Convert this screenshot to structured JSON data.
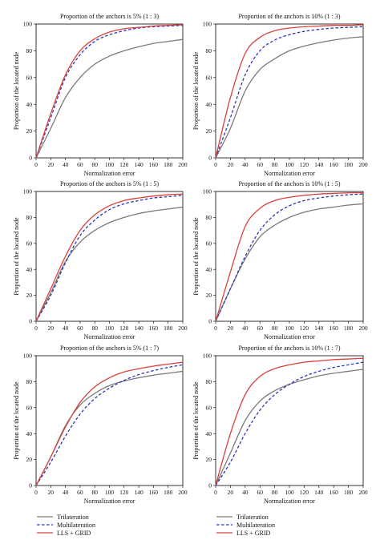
{
  "chart_data": [
    {
      "type": "line",
      "title": "Proportion of the anchors is 5% (1 : 3)",
      "xlabel": "Normalization error",
      "ylabel": "Proportion of the located node",
      "xlim": [
        0,
        200
      ],
      "ylim": [
        0,
        100
      ],
      "x": [
        0,
        20,
        40,
        60,
        80,
        100,
        120,
        140,
        160,
        180,
        200
      ],
      "xticks": [
        "0",
        "20",
        "40",
        "60",
        "80",
        "100",
        "120",
        "140",
        "160",
        "180",
        "200"
      ],
      "yticks": [
        "0",
        "20",
        "40",
        "60",
        "80",
        "100"
      ],
      "series": [
        {
          "name": "Trilateration",
          "values": [
            0,
            22,
            45,
            60,
            70,
            76,
            80,
            83,
            85.5,
            87,
            88.5
          ]
        },
        {
          "name": "Multilateration",
          "values": [
            0,
            30,
            60,
            77,
            87,
            92,
            95,
            97,
            98,
            98.5,
            99
          ]
        },
        {
          "name": "LLS + GRID",
          "values": [
            0,
            33,
            62,
            80,
            89,
            94,
            96.5,
            97.5,
            98.5,
            99,
            99.5
          ]
        }
      ]
    },
    {
      "type": "line",
      "title": "Proportion of the anchors is 10% (1 : 3)",
      "xlabel": "Normalization error",
      "ylabel": "Proportion of the located node",
      "xlim": [
        0,
        200
      ],
      "ylim": [
        0,
        100
      ],
      "x": [
        0,
        20,
        40,
        60,
        80,
        100,
        120,
        140,
        160,
        180,
        200
      ],
      "xticks": [
        "0",
        "20",
        "40",
        "60",
        "80",
        "100",
        "120",
        "140",
        "160",
        "180",
        "200"
      ],
      "yticks": [
        "0",
        "20",
        "40",
        "60",
        "80",
        "100"
      ],
      "series": [
        {
          "name": "Trilateration",
          "values": [
            0,
            22,
            50,
            66,
            74,
            80,
            83.5,
            86,
            88,
            89.5,
            90.5
          ]
        },
        {
          "name": "Multilateration",
          "values": [
            0,
            30,
            62,
            80,
            88,
            92,
            94.5,
            96,
            97,
            97.5,
            98
          ]
        },
        {
          "name": "LLS + GRID",
          "values": [
            0,
            45,
            78,
            90,
            95,
            97,
            98,
            98.5,
            99,
            99,
            99.5
          ]
        }
      ]
    },
    {
      "type": "line",
      "title": "Proportion of the anchors is 5% (1 : 5)",
      "xlabel": "Normalization error",
      "ylabel": "Proportion of the located node",
      "xlim": [
        0,
        200
      ],
      "ylim": [
        0,
        100
      ],
      "x": [
        0,
        20,
        40,
        60,
        80,
        100,
        120,
        140,
        160,
        180,
        200
      ],
      "xticks": [
        "0",
        "20",
        "40",
        "60",
        "80",
        "100",
        "120",
        "140",
        "160",
        "180",
        "200"
      ],
      "yticks": [
        "0",
        "20",
        "40",
        "60",
        "80",
        "100"
      ],
      "series": [
        {
          "name": "Trilateration",
          "values": [
            0,
            22,
            46,
            61,
            70,
            76,
            80,
            83,
            85,
            86.5,
            88
          ]
        },
        {
          "name": "Multilateration",
          "values": [
            0,
            20,
            45,
            66,
            78,
            86,
            90.5,
            93,
            95,
            96,
            97
          ]
        },
        {
          "name": "LLS + GRID",
          "values": [
            0,
            25,
            50,
            70,
            82,
            89,
            93,
            95,
            96.5,
            97.5,
            98
          ]
        }
      ]
    },
    {
      "type": "line",
      "title": "Proportion of the anchors is 10% (1 : 5)",
      "xlabel": "Normalization error",
      "ylabel": "Proportion of the located node",
      "xlim": [
        0,
        200
      ],
      "ylim": [
        0,
        100
      ],
      "x": [
        0,
        20,
        40,
        60,
        80,
        100,
        120,
        140,
        160,
        180,
        200
      ],
      "xticks": [
        "0",
        "20",
        "40",
        "60",
        "80",
        "100",
        "120",
        "140",
        "160",
        "180",
        "200"
      ],
      "yticks": [
        "0",
        "20",
        "40",
        "60",
        "80",
        "100"
      ],
      "series": [
        {
          "name": "Trilateration",
          "values": [
            0,
            25,
            48,
            65,
            74,
            80,
            84,
            86.5,
            88,
            89.5,
            90.5
          ]
        },
        {
          "name": "Multilateration",
          "values": [
            0,
            25,
            50,
            70,
            82,
            89,
            93,
            95,
            96.5,
            97.5,
            98
          ]
        },
        {
          "name": "LLS + GRID",
          "values": [
            0,
            38,
            73,
            87,
            93,
            95.5,
            97,
            98,
            98.5,
            99,
            99
          ]
        }
      ]
    },
    {
      "type": "line",
      "title": "Proportion of the anchors is 5% (1 : 7)",
      "xlabel": "Normalization error",
      "ylabel": "Proportion of the located node",
      "xlim": [
        0,
        200
      ],
      "ylim": [
        0,
        100
      ],
      "x": [
        0,
        20,
        40,
        60,
        80,
        100,
        120,
        140,
        160,
        180,
        200
      ],
      "xticks": [
        "0",
        "20",
        "40",
        "60",
        "80",
        "100",
        "120",
        "140",
        "160",
        "180",
        "200"
      ],
      "yticks": [
        "0",
        "20",
        "40",
        "60",
        "80",
        "100"
      ],
      "series": [
        {
          "name": "Trilateration",
          "values": [
            0,
            22,
            46,
            62,
            71,
            77,
            80.5,
            83,
            85,
            86.5,
            88
          ]
        },
        {
          "name": "Multilateration",
          "values": [
            0,
            18,
            38,
            55,
            67,
            75,
            81,
            85.5,
            88.5,
            91,
            93
          ]
        },
        {
          "name": "LLS + GRID",
          "values": [
            0,
            22,
            45,
            64,
            76,
            83,
            87.5,
            90,
            92,
            93.5,
            95
          ]
        }
      ]
    },
    {
      "type": "line",
      "title": "Proportion of the anchors is 10% (1 : 7)",
      "xlabel": "Normalization error",
      "ylabel": "Proportion of the located node",
      "xlim": [
        0,
        200
      ],
      "ylim": [
        0,
        100
      ],
      "x": [
        0,
        20,
        40,
        60,
        80,
        100,
        120,
        140,
        160,
        180,
        200
      ],
      "xticks": [
        "0",
        "20",
        "40",
        "60",
        "80",
        "100",
        "120",
        "140",
        "160",
        "180",
        "200"
      ],
      "yticks": [
        "0",
        "20",
        "40",
        "60",
        "80",
        "100"
      ],
      "series": [
        {
          "name": "Trilateration",
          "values": [
            0,
            25,
            50,
            65,
            73,
            78,
            81.5,
            84.5,
            86.5,
            88,
            89.5
          ]
        },
        {
          "name": "Multilateration",
          "values": [
            0,
            18,
            40,
            58,
            70,
            78,
            84,
            88,
            91,
            93,
            95
          ]
        },
        {
          "name": "LLS + GRID",
          "values": [
            0,
            40,
            70,
            84,
            90,
            93,
            95,
            96,
            97,
            97.5,
            98
          ]
        }
      ]
    }
  ],
  "legend": {
    "items": [
      {
        "label": "Trilateration"
      },
      {
        "label": "Multilateration"
      },
      {
        "label": "LLS + GRID"
      }
    ]
  },
  "colors": {
    "trilateration": "#7a7a7a",
    "multilateration": "#2b35b8",
    "lls_grid": "#d9403a"
  }
}
